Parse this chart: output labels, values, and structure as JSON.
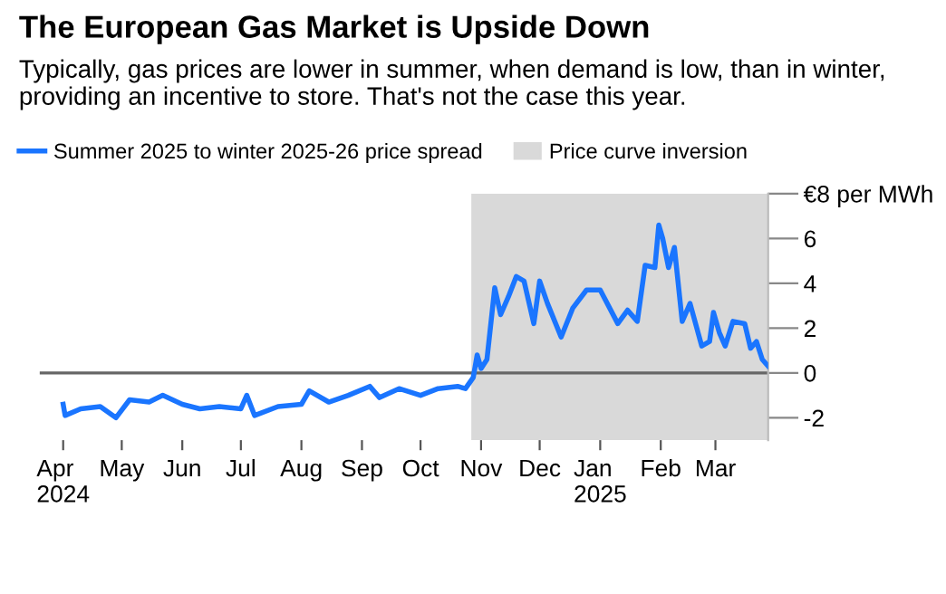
{
  "chart_data": {
    "type": "line",
    "title": "The European Gas Market is Upside Down",
    "subtitle": "Typically, gas prices are lower in summer, when demand is low, than in winter, providing an incentive to store. That's not the case this year.",
    "series": [
      {
        "name": "Summer 2025 to winter 2025-26 price spread",
        "color": "#1a75ff",
        "x": [
          "2024-04-01",
          "2024-04-02",
          "2024-04-10",
          "2024-04-20",
          "2024-04-28",
          "2024-05-05",
          "2024-05-15",
          "2024-05-22",
          "2024-06-01",
          "2024-06-10",
          "2024-06-20",
          "2024-07-01",
          "2024-07-04",
          "2024-07-08",
          "2024-07-20",
          "2024-08-01",
          "2024-08-05",
          "2024-08-15",
          "2024-08-25",
          "2024-09-05",
          "2024-09-10",
          "2024-09-20",
          "2024-10-01",
          "2024-10-10",
          "2024-10-20",
          "2024-10-24",
          "2024-10-28",
          "2024-10-30",
          "2024-11-01",
          "2024-11-04",
          "2024-11-08",
          "2024-11-11",
          "2024-11-15",
          "2024-11-19",
          "2024-11-23",
          "2024-11-28",
          "2024-12-01",
          "2024-12-05",
          "2024-12-12",
          "2024-12-18",
          "2024-12-25",
          "2025-01-01",
          "2025-01-10",
          "2025-01-15",
          "2025-01-20",
          "2025-01-24",
          "2025-01-29",
          "2025-01-31",
          "2025-02-02",
          "2025-02-05",
          "2025-02-08",
          "2025-02-12",
          "2025-02-16",
          "2025-02-22",
          "2025-02-26",
          "2025-02-28",
          "2025-03-03",
          "2025-03-06",
          "2025-03-10",
          "2025-03-16",
          "2025-03-19",
          "2025-03-22",
          "2025-03-25",
          "2025-03-28"
        ],
        "values": [
          -1.4,
          -1.9,
          -1.6,
          -1.5,
          -2.0,
          -1.2,
          -1.3,
          -1.0,
          -1.4,
          -1.6,
          -1.5,
          -1.6,
          -1.0,
          -1.9,
          -1.5,
          -1.4,
          -0.8,
          -1.3,
          -1.0,
          -0.6,
          -1.1,
          -0.7,
          -1.0,
          -0.7,
          -0.6,
          -0.7,
          -0.2,
          0.8,
          0.2,
          0.6,
          3.8,
          2.6,
          3.4,
          4.3,
          4.1,
          2.2,
          4.1,
          3.1,
          1.6,
          2.9,
          3.7,
          3.7,
          2.2,
          2.8,
          2.3,
          4.8,
          4.7,
          6.6,
          6.0,
          4.7,
          5.6,
          2.3,
          3.1,
          1.2,
          1.4,
          2.7,
          1.8,
          1.2,
          2.3,
          2.2,
          1.1,
          1.4,
          0.6,
          0.3
        ]
      }
    ],
    "xlim": [
      "2024-03-20",
      "2025-03-28"
    ],
    "xticks": [
      {
        "value": "2024-04-01",
        "label": "Apr\n2024"
      },
      {
        "value": "2024-05-01",
        "label": "May"
      },
      {
        "value": "2024-06-01",
        "label": "Jun"
      },
      {
        "value": "2024-07-01",
        "label": "Jul"
      },
      {
        "value": "2024-08-01",
        "label": "Aug"
      },
      {
        "value": "2024-09-01",
        "label": "Sep"
      },
      {
        "value": "2024-10-01",
        "label": "Oct"
      },
      {
        "value": "2024-11-01",
        "label": "Nov"
      },
      {
        "value": "2024-12-01",
        "label": "Dec"
      },
      {
        "value": "2025-01-01",
        "label": "Jan\n2025"
      },
      {
        "value": "2025-02-01",
        "label": "Feb"
      },
      {
        "value": "2025-03-01",
        "label": "Mar"
      }
    ],
    "ylim": [
      -3,
      8
    ],
    "yticks": [
      {
        "value": 8,
        "label": "€8 per MWh"
      },
      6,
      4,
      2,
      0,
      -2
    ],
    "bands": [
      {
        "axis": "x",
        "from": "2024-10-27",
        "to": "2025-03-28",
        "label": "Price curve inversion",
        "color": "#d9d9d9"
      }
    ],
    "ref_lines": [
      {
        "axis": "y",
        "value": 0,
        "color": "#666666"
      }
    ],
    "legend": "top left",
    "grid": false
  }
}
